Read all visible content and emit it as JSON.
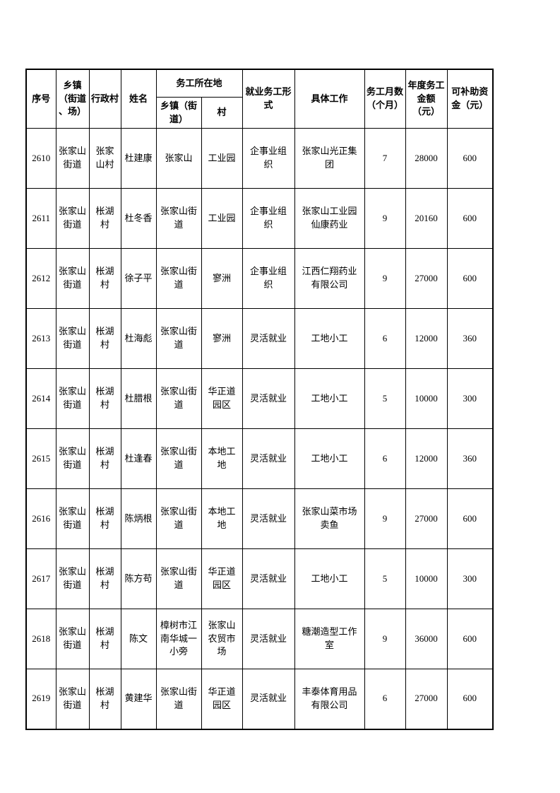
{
  "page": {
    "background": "#ffffff",
    "grid_color": "#000000"
  },
  "table": {
    "column_keys": [
      "seq",
      "township",
      "village",
      "name",
      "work-township",
      "work-village",
      "employment-form",
      "job",
      "months",
      "annual-amount",
      "subsidy"
    ],
    "headers": {
      "seq": "序号",
      "township": "乡镇\n（街道\n、场）",
      "village": "行政村",
      "name": "姓名",
      "work_location_group": "务工所在地",
      "work_township": "乡镇（街\n道）",
      "work_village": "村",
      "employment_form": "就业务工形\n式",
      "job": "具体工作",
      "months": "务工月数\n（个月）",
      "annual_amount": "年度务工\n金额\n（元）",
      "subsidy": "可补助资\n金（元）"
    },
    "rows": [
      [
        "2610",
        "张家山街道",
        "张家山村",
        "杜建康",
        "张家山",
        "工业园",
        "企事业组织",
        "张家山光正集团",
        "7",
        "28000",
        "600"
      ],
      [
        "2611",
        "张家山街道",
        "枨湖村",
        "杜冬香",
        "张家山街道",
        "工业园",
        "企事业组织",
        "张家山工业园仙康药业",
        "9",
        "20160",
        "600"
      ],
      [
        "2612",
        "张家山街道",
        "枨湖村",
        "徐子平",
        "张家山街道",
        "寥洲",
        "企事业组织",
        "江西仁翔药业有限公司",
        "9",
        "27000",
        "600"
      ],
      [
        "2613",
        "张家山街道",
        "枨湖村",
        "杜海彪",
        "张家山街道",
        "寥洲",
        "灵活就业",
        "工地小工",
        "6",
        "12000",
        "360"
      ],
      [
        "2614",
        "张家山街道",
        "枨湖村",
        "杜腊根",
        "张家山街道",
        "华正道园区",
        "灵活就业",
        "工地小工",
        "5",
        "10000",
        "300"
      ],
      [
        "2615",
        "张家山街道",
        "枨湖村",
        "杜逢春",
        "张家山街道",
        "本地工地",
        "灵活就业",
        "工地小工",
        "6",
        "12000",
        "360"
      ],
      [
        "2616",
        "张家山街道",
        "枨湖村",
        "陈炳根",
        "张家山街道",
        "本地工地",
        "灵活就业",
        "张家山菜市场卖鱼",
        "9",
        "27000",
        "600"
      ],
      [
        "2617",
        "张家山街道",
        "枨湖村",
        "陈方苟",
        "张家山街道",
        "华正道园区",
        "灵活就业",
        "工地小工",
        "5",
        "10000",
        "300"
      ],
      [
        "2618",
        "张家山街道",
        "枨湖村",
        "陈文",
        "樟树市江南华城一小旁",
        "张家山农贸市场",
        "灵活就业",
        "糖潮造型工作室",
        "9",
        "36000",
        "600"
      ],
      [
        "2619",
        "张家山街道",
        "枨湖村",
        "黄建华",
        "张家山街道",
        "华正道园区",
        "灵活就业",
        "丰泰体育用品有限公司",
        "6",
        "27000",
        "600"
      ]
    ]
  }
}
